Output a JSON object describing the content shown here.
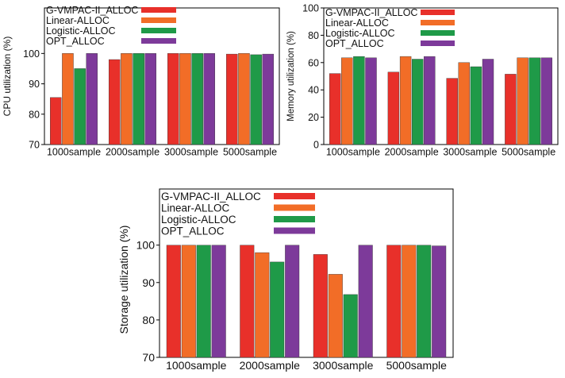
{
  "colors": {
    "G-VMPAC-II_ALLOC": "#e8302a",
    "Linear-ALLOC": "#f26d27",
    "Logistic-ALLOC": "#1f9a48",
    "OPT_ALLOC": "#7d3a9a"
  },
  "chart_data": [
    {
      "type": "bar",
      "title": "",
      "xlabel": "",
      "ylabel": "CPU  utilization (%)",
      "ylim": [
        70,
        115
      ],
      "yticks": [
        70,
        80,
        90,
        100
      ],
      "legend_position": "top-left",
      "categories": [
        "1000sample",
        "2000sample",
        "3000sample",
        "5000sample"
      ],
      "series": [
        {
          "name": "G-VMPAC-II_ALLOC",
          "values": [
            85.5,
            98,
            100,
            99.8
          ]
        },
        {
          "name": "Linear-ALLOC",
          "values": [
            100,
            100,
            100,
            100
          ]
        },
        {
          "name": "Logistic-ALLOC",
          "values": [
            95,
            100,
            100,
            99.6
          ]
        },
        {
          "name": "OPT_ALLOC",
          "values": [
            100,
            100,
            100,
            99.8
          ]
        }
      ]
    },
    {
      "type": "bar",
      "title": "",
      "xlabel": "",
      "ylabel": "Memory  utilization (%)",
      "ylim": [
        0,
        100
      ],
      "yticks": [
        0,
        20,
        40,
        60,
        80,
        100
      ],
      "legend_position": "top-left",
      "categories": [
        "1000sample",
        "2000sample",
        "3000sample",
        "5000sample"
      ],
      "series": [
        {
          "name": "G-VMPAC-II_ALLOC",
          "values": [
            52,
            53,
            48.5,
            51.5
          ]
        },
        {
          "name": "Linear-ALLOC",
          "values": [
            63.5,
            64.5,
            60,
            63.5
          ]
        },
        {
          "name": "Logistic-ALLOC",
          "values": [
            64.5,
            62.5,
            57,
            63.5
          ]
        },
        {
          "name": "OPT_ALLOC",
          "values": [
            63.5,
            64.5,
            62.5,
            63.5
          ]
        }
      ]
    },
    {
      "type": "bar",
      "title": "",
      "xlabel": "",
      "ylabel": "Storage  utilization (%)",
      "ylim": [
        70,
        115
      ],
      "yticks": [
        70,
        80,
        90,
        100
      ],
      "legend_position": "top-left",
      "categories": [
        "1000sample",
        "2000sample",
        "3000sample",
        "5000sample"
      ],
      "series": [
        {
          "name": "G-VMPAC-II_ALLOC",
          "values": [
            100,
            100,
            97.5,
            100
          ]
        },
        {
          "name": "Linear-ALLOC",
          "values": [
            100,
            98,
            92.2,
            100
          ]
        },
        {
          "name": "Logistic-ALLOC",
          "values": [
            100,
            95.5,
            86.8,
            100
          ]
        },
        {
          "name": "OPT_ALLOC",
          "values": [
            100,
            100,
            100,
            99.8
          ]
        }
      ]
    }
  ]
}
